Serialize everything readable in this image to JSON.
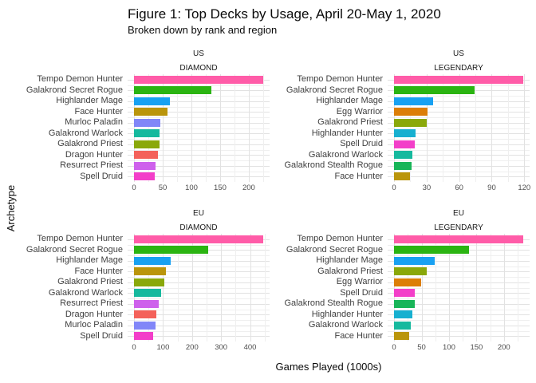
{
  "title": "Figure 1: Top Decks by Usage, April 20-May 1, 2020",
  "subtitle": "Broken down by rank and region",
  "axis": {
    "x_label": "Games Played (1000s)",
    "y_label": "Archetype"
  },
  "colors": {
    "Tempo Demon Hunter": "#FF5CA8",
    "Galakrond Secret Rogue": "#2BB412",
    "Highlander Mage": "#18A1F2",
    "Face Hunter": "#BA950B",
    "Murloc Paladin": "#8186F8",
    "Galakrond Warlock": "#16B99E",
    "Galakrond Priest": "#8AA80A",
    "Dragon Hunter": "#F4615A",
    "Resurrect Priest": "#CE61EC",
    "Spell Druid": "#F33FC9",
    "Egg Warrior": "#DC7E07",
    "Highlander Hunter": "#17B0D0",
    "Galakrond Stealth Rogue": "#18B558"
  },
  "chart_data": [
    {
      "type": "bar",
      "orientation": "horizontal",
      "region": "US",
      "rank": "DIAMOND",
      "categories": [
        "Tempo Demon Hunter",
        "Galakrond Secret Rogue",
        "Highlander Mage",
        "Face Hunter",
        "Murloc Paladin",
        "Galakrond Warlock",
        "Galakrond Priest",
        "Dragon Hunter",
        "Resurrect Priest",
        "Spell Druid"
      ],
      "values": [
        225,
        135,
        62,
        58,
        46,
        45,
        44,
        42,
        38,
        36
      ],
      "xticks": [
        0,
        50,
        100,
        150,
        200
      ],
      "xlim": [
        0,
        236
      ],
      "grid": "on",
      "legend": "none"
    },
    {
      "type": "bar",
      "orientation": "horizontal",
      "region": "US",
      "rank": "LEGENDARY",
      "categories": [
        "Tempo Demon Hunter",
        "Galakrond Secret Rogue",
        "Highlander Mage",
        "Egg Warrior",
        "Galakrond Priest",
        "Highlander Hunter",
        "Spell Druid",
        "Galakrond Warlock",
        "Galakrond Stealth Rogue",
        "Face Hunter"
      ],
      "values": [
        119,
        74,
        36,
        31,
        30,
        20,
        19,
        17,
        16,
        15
      ],
      "xticks": [
        0,
        30,
        60,
        90,
        120
      ],
      "xlim": [
        0,
        125
      ],
      "grid": "on",
      "legend": "none"
    },
    {
      "type": "bar",
      "orientation": "horizontal",
      "region": "EU",
      "rank": "DIAMOND",
      "categories": [
        "Tempo Demon Hunter",
        "Galakrond Secret Rogue",
        "Highlander Mage",
        "Face Hunter",
        "Galakrond Priest",
        "Galakrond Warlock",
        "Resurrect Priest",
        "Dragon Hunter",
        "Murloc Paladin",
        "Spell Druid"
      ],
      "values": [
        445,
        255,
        127,
        111,
        103,
        93,
        84,
        76,
        73,
        67
      ],
      "xticks": [
        0,
        100,
        200,
        300,
        400
      ],
      "xlim": [
        0,
        467
      ],
      "grid": "on",
      "legend": "none"
    },
    {
      "type": "bar",
      "orientation": "horizontal",
      "region": "EU",
      "rank": "LEGENDARY",
      "categories": [
        "Tempo Demon Hunter",
        "Galakrond Secret Rogue",
        "Highlander Mage",
        "Galakrond Priest",
        "Egg Warrior",
        "Spell Druid",
        "Galakrond Stealth Rogue",
        "Highlander Hunter",
        "Galakrond Warlock",
        "Face Hunter"
      ],
      "values": [
        235,
        137,
        74,
        59,
        49,
        38,
        37,
        34,
        31,
        28
      ],
      "xticks": [
        0,
        50,
        100,
        150,
        200
      ],
      "xlim": [
        0,
        247
      ],
      "grid": "on",
      "legend": "none"
    }
  ]
}
